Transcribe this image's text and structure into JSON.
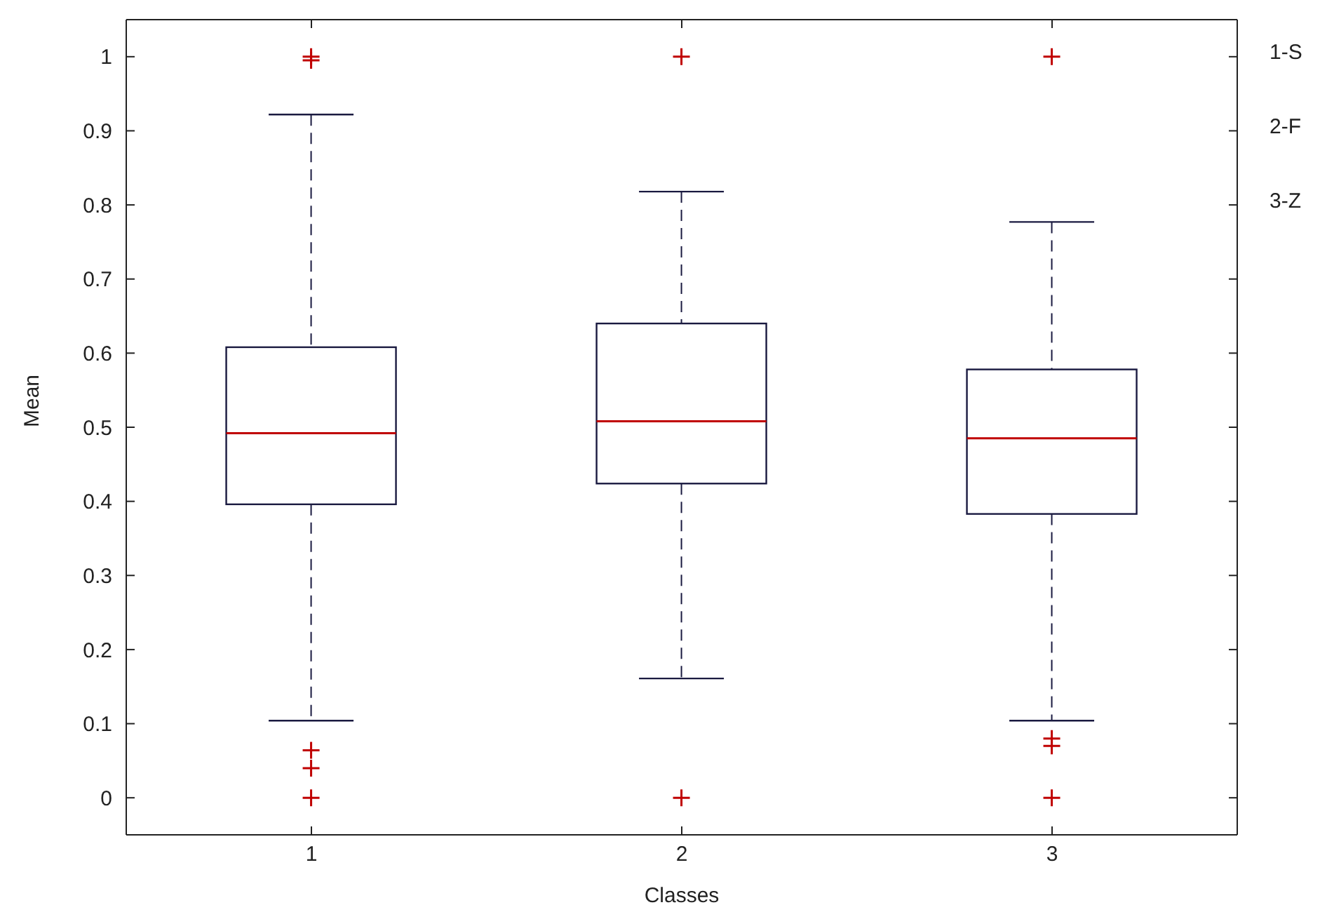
{
  "chart_data": {
    "type": "box",
    "xlabel": "Classes",
    "ylabel": "Mean",
    "categories": [
      "1",
      "2",
      "3"
    ],
    "series": [
      {
        "type": "box",
        "color": "#1a1a40",
        "boxes": [
          {
            "low": 0.104,
            "q1": 0.396,
            "median": 0.492,
            "q3": 0.608,
            "high": 0.922,
            "outliers": [
              0,
              0.04,
              0.064,
              0.995,
              1.0
            ]
          },
          {
            "low": 0.161,
            "q1": 0.424,
            "median": 0.508,
            "q3": 0.64,
            "high": 0.818,
            "outliers": [
              0,
              1.0
            ]
          },
          {
            "low": 0.104,
            "q1": 0.383,
            "median": 0.485,
            "q3": 0.578,
            "high": 0.777,
            "outliers": [
              0,
              0.07,
              0.08,
              1.0
            ]
          }
        ]
      }
    ],
    "ylim": [
      -0.05,
      1.05
    ],
    "yticks": [
      0,
      0.1,
      0.2,
      0.3,
      0.4,
      0.5,
      0.6,
      0.7,
      0.8,
      0.9,
      1
    ],
    "annotations": [
      "1-S",
      "2-F",
      "3-Z"
    ],
    "grid": false,
    "legend": false
  }
}
